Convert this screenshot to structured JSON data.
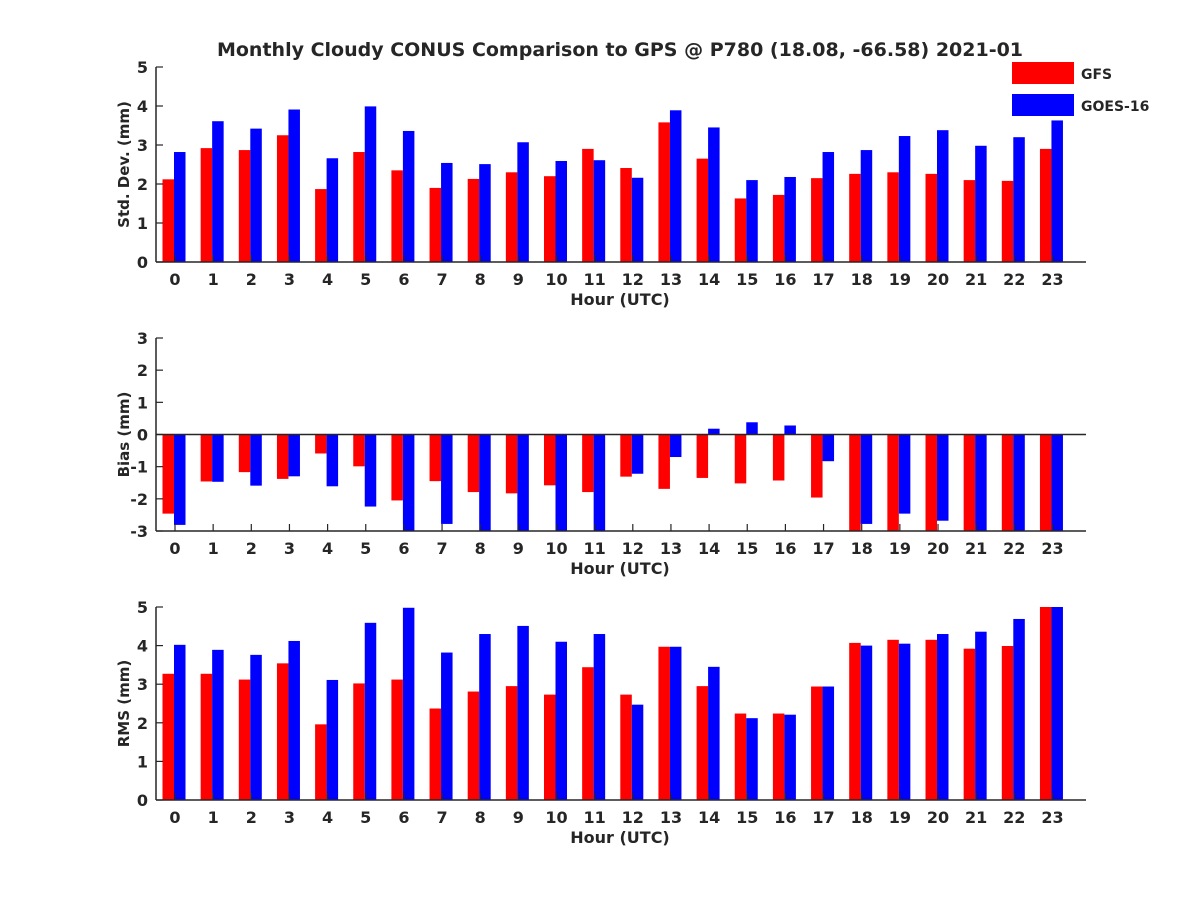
{
  "title": "Monthly Cloudy CONUS Comparison to GPS @ P780 (18.08, -66.58) 2021-01",
  "colors": {
    "GFS": "#ff0000",
    "GOES-16": "#0000ff",
    "axis": "#262626"
  },
  "legend": {
    "placement": "top-right",
    "entries": [
      "GFS",
      "GOES-16"
    ]
  },
  "chart_data": [
    {
      "type": "bar",
      "xlabel": "Hour (UTC)",
      "ylabel": "Std. Dev. (mm)",
      "ylim": [
        0,
        5
      ],
      "yticks": [
        "0",
        "1",
        "2",
        "3",
        "4",
        "5"
      ],
      "categories": [
        "0",
        "1",
        "2",
        "3",
        "4",
        "5",
        "6",
        "7",
        "8",
        "9",
        "10",
        "11",
        "12",
        "13",
        "14",
        "15",
        "16",
        "17",
        "18",
        "19",
        "20",
        "21",
        "22",
        "23"
      ],
      "series": [
        {
          "name": "GFS",
          "values": [
            2.12,
            2.92,
            2.87,
            3.25,
            1.87,
            2.82,
            2.35,
            1.9,
            2.13,
            2.3,
            2.2,
            2.9,
            2.41,
            3.58,
            2.65,
            1.63,
            1.72,
            2.15,
            2.26,
            2.3,
            2.26,
            2.1,
            2.08,
            2.9
          ]
        },
        {
          "name": "GOES-16",
          "values": [
            2.82,
            3.61,
            3.42,
            3.91,
            2.66,
            3.99,
            3.36,
            2.54,
            2.51,
            3.07,
            2.59,
            2.61,
            2.16,
            3.89,
            3.45,
            2.1,
            2.18,
            2.82,
            2.87,
            3.23,
            3.38,
            2.98,
            3.2,
            3.63
          ]
        }
      ]
    },
    {
      "type": "bar",
      "xlabel": "Hour (UTC)",
      "ylabel": "Bias (mm)",
      "ylim": [
        -3,
        3
      ],
      "yticks": [
        "-3",
        "-2",
        "-1",
        "0",
        "1",
        "2",
        "3"
      ],
      "categories": [
        "0",
        "1",
        "2",
        "3",
        "4",
        "5",
        "6",
        "7",
        "8",
        "9",
        "10",
        "11",
        "12",
        "13",
        "14",
        "15",
        "16",
        "17",
        "18",
        "19",
        "20",
        "21",
        "22",
        "23"
      ],
      "series": [
        {
          "name": "GFS",
          "values": [
            -2.46,
            -1.46,
            -1.17,
            -1.38,
            -0.59,
            -0.99,
            -2.05,
            -1.45,
            -1.79,
            -1.83,
            -1.58,
            -1.79,
            -1.31,
            -1.69,
            -1.35,
            -1.52,
            -1.43,
            -1.96,
            -3.0,
            -3.0,
            -3.0,
            -3.0,
            -3.0,
            -3.0
          ]
        },
        {
          "name": "GOES-16",
          "values": [
            -2.81,
            -1.47,
            -1.59,
            -1.3,
            -1.61,
            -2.24,
            -3.0,
            -2.78,
            -3.0,
            -3.0,
            -3.0,
            -3.0,
            -1.22,
            -0.7,
            0.18,
            0.38,
            0.28,
            -0.83,
            -2.78,
            -2.46,
            -2.68,
            -3.0,
            -3.0,
            -3.0
          ]
        }
      ]
    },
    {
      "type": "bar",
      "xlabel": "Hour (UTC)",
      "ylabel": "RMS (mm)",
      "ylim": [
        0,
        5
      ],
      "yticks": [
        "0",
        "1",
        "2",
        "3",
        "4",
        "5"
      ],
      "categories": [
        "0",
        "1",
        "2",
        "3",
        "4",
        "5",
        "6",
        "7",
        "8",
        "9",
        "10",
        "11",
        "12",
        "13",
        "14",
        "15",
        "16",
        "17",
        "18",
        "19",
        "20",
        "21",
        "22",
        "23"
      ],
      "series": [
        {
          "name": "GFS",
          "values": [
            3.27,
            3.27,
            3.12,
            3.54,
            1.96,
            3.02,
            3.12,
            2.37,
            2.81,
            2.95,
            2.73,
            3.44,
            2.73,
            3.97,
            2.95,
            2.24,
            2.24,
            2.94,
            4.07,
            4.15,
            4.15,
            3.92,
            3.99,
            5.0
          ]
        },
        {
          "name": "GOES-16",
          "values": [
            4.02,
            3.89,
            3.76,
            4.12,
            3.11,
            4.59,
            4.98,
            3.82,
            4.3,
            4.51,
            4.1,
            4.3,
            2.47,
            3.97,
            3.45,
            2.12,
            2.21,
            2.94,
            4.0,
            4.05,
            4.3,
            4.36,
            4.69,
            5.0
          ]
        }
      ]
    }
  ]
}
